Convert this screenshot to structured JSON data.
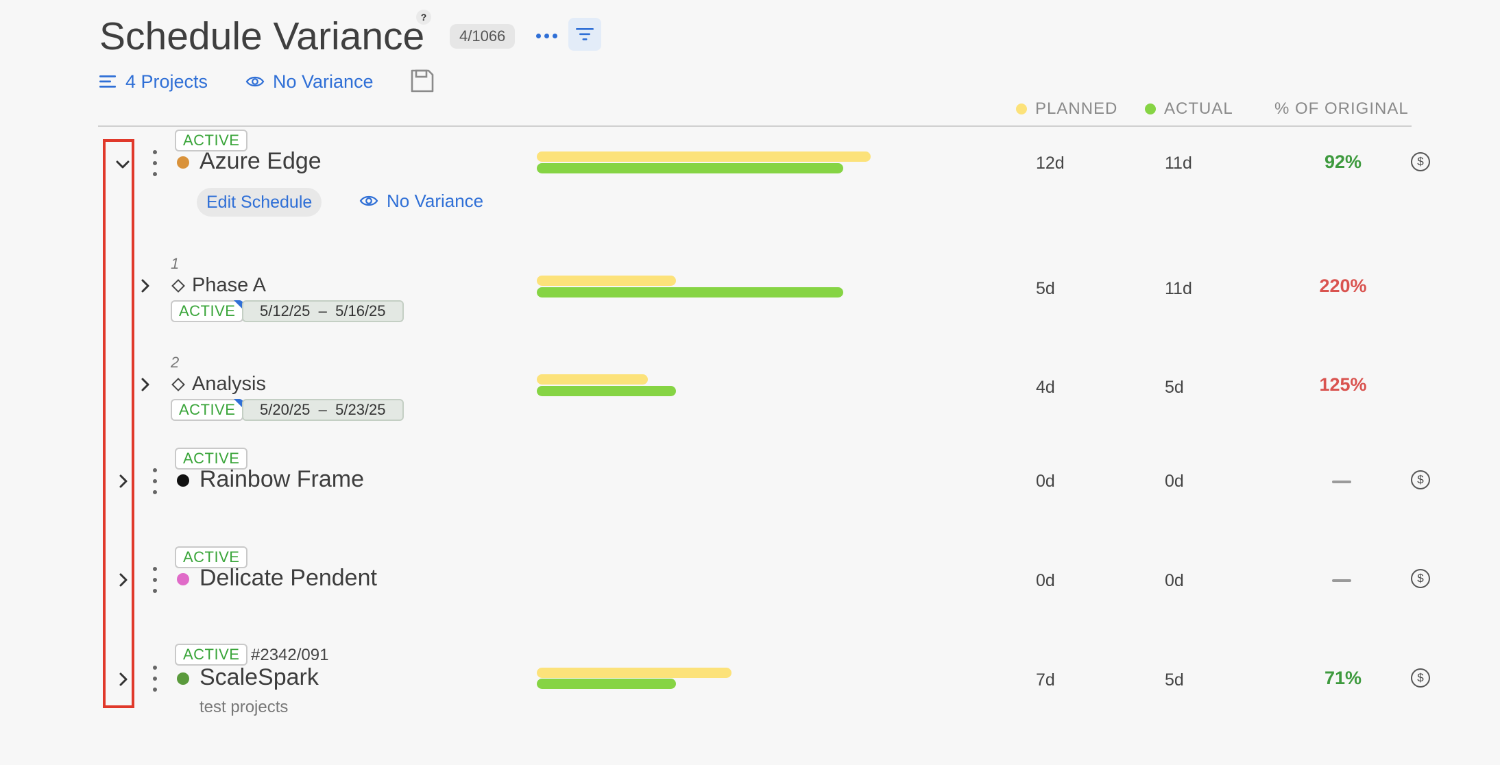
{
  "header": {
    "title": "Schedule Variance",
    "help_label": "?",
    "count_badge": "4/1066",
    "projects_link": "4 Projects",
    "variance_link": "No Variance"
  },
  "columns": {
    "planned": "PLANNED",
    "actual": "ACTUAL",
    "pct": "% OF ORIGINAL"
  },
  "colors": {
    "planned": "#fce27a",
    "actual": "#86d444",
    "accent": "#2f6fd6",
    "highlight": "#e0392b"
  },
  "scale": {
    "max_days": 11
  },
  "rows": [
    {
      "type": "project",
      "status": "ACTIVE",
      "name": "Azure Edge",
      "dot_color": "#d9923a",
      "expanded": true,
      "planned_label": "12d",
      "actual_label": "11d",
      "planned_days": 12,
      "actual_days": 11,
      "pct": "92%",
      "edit_label": "Edit Schedule",
      "variance_label": "No Variance"
    },
    {
      "type": "phase",
      "index": "1",
      "name": "Phase A",
      "status": "ACTIVE",
      "start": "5/12/25",
      "sep": "–",
      "end": "5/16/25",
      "planned_label": "5d",
      "actual_label": "11d",
      "planned_days": 5,
      "actual_days": 11,
      "pct": "220%"
    },
    {
      "type": "phase",
      "index": "2",
      "name": "Analysis",
      "status": "ACTIVE",
      "start": "5/20/25",
      "sep": "–",
      "end": "5/23/25",
      "planned_label": "4d",
      "actual_label": "5d",
      "planned_days": 4,
      "actual_days": 5,
      "pct": "125%"
    },
    {
      "type": "project",
      "status": "ACTIVE",
      "name": "Rainbow Frame",
      "dot_color": "#111111",
      "planned_label": "0d",
      "actual_label": "0d",
      "pct": null
    },
    {
      "type": "project",
      "status": "ACTIVE",
      "name": "Delicate Pendent",
      "dot_color": "#e06bc8",
      "planned_label": "0d",
      "actual_label": "0d",
      "pct": null
    },
    {
      "type": "project",
      "status": "ACTIVE",
      "ref": "#2342/091",
      "name": "ScaleSpark",
      "dot_color": "#5a9a3c",
      "subtitle": "test projects",
      "planned_label": "7d",
      "actual_label": "5d",
      "planned_days": 7,
      "actual_days": 5,
      "pct": "71%"
    }
  ]
}
